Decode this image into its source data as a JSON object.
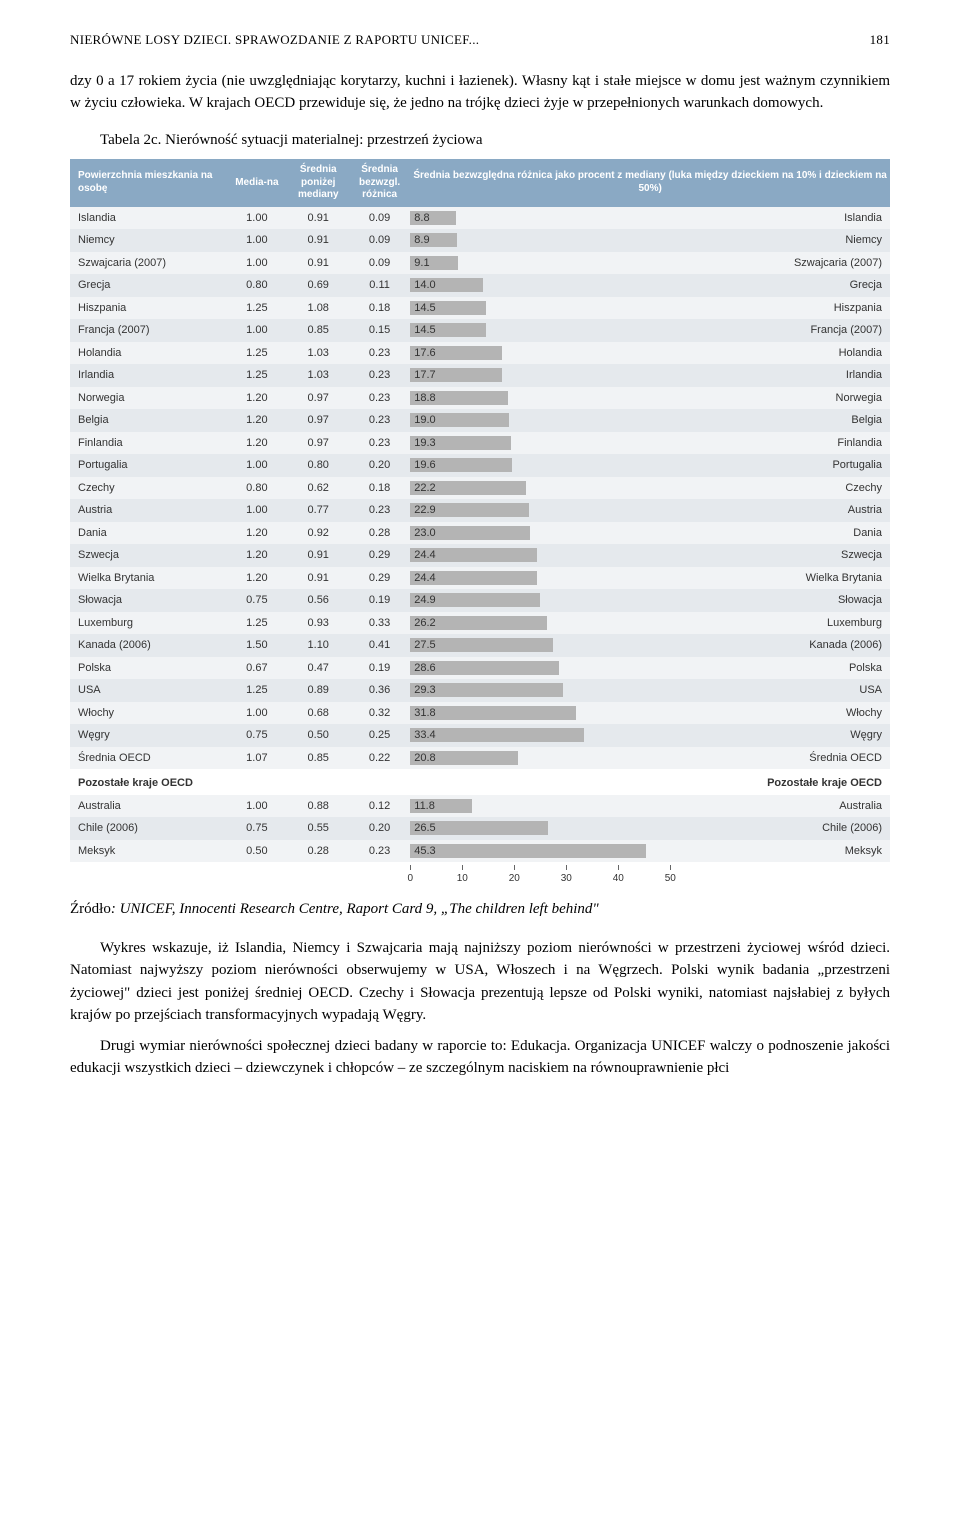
{
  "header": {
    "title": "NIERÓWNE LOSY DZIECI. SPRAWOZDANIE Z RAPORTU UNICEF...",
    "page": "181"
  },
  "intro": "dzy 0 a 17 rokiem życia (nie uwzględniając korytarzy, kuchni i łazienek). Własny kąt i stałe miejsce w domu jest ważnym czynnikiem w życiu człowieka. W krajach OECD przewiduje się, że jedno na trójkę dzieci żyje w przepełnionych warunkach domowych.",
  "table_caption": "Tabela 2c. Nierówność sytuacji materialnej: przestrzeń życiowa",
  "table": {
    "headers": {
      "col1": "Powierzchnia mieszkania na osobę",
      "col2": "Media-na",
      "col3": "Średnia poniżej mediany",
      "col4": "Średnia bezwzgl. różnica",
      "col5": "Średnia bezwzględna różnica jako procent z mediany (luka między dzieckiem na 10% i dzieckiem na 50%)"
    },
    "rows": [
      {
        "name": "Islandia",
        "med": "1.00",
        "below": "0.91",
        "diff": "0.09",
        "val": 8.8
      },
      {
        "name": "Niemcy",
        "med": "1.00",
        "below": "0.91",
        "diff": "0.09",
        "val": 8.9
      },
      {
        "name": "Szwajcaria (2007)",
        "med": "1.00",
        "below": "0.91",
        "diff": "0.09",
        "val": 9.1
      },
      {
        "name": "Grecja",
        "med": "0.80",
        "below": "0.69",
        "diff": "0.11",
        "val": 14.0
      },
      {
        "name": "Hiszpania",
        "med": "1.25",
        "below": "1.08",
        "diff": "0.18",
        "val": 14.5
      },
      {
        "name": "Francja (2007)",
        "med": "1.00",
        "below": "0.85",
        "diff": "0.15",
        "val": 14.5
      },
      {
        "name": "Holandia",
        "med": "1.25",
        "below": "1.03",
        "diff": "0.23",
        "val": 17.6
      },
      {
        "name": "Irlandia",
        "med": "1.25",
        "below": "1.03",
        "diff": "0.23",
        "val": 17.7
      },
      {
        "name": "Norwegia",
        "med": "1.20",
        "below": "0.97",
        "diff": "0.23",
        "val": 18.8
      },
      {
        "name": "Belgia",
        "med": "1.20",
        "below": "0.97",
        "diff": "0.23",
        "val": 19.0
      },
      {
        "name": "Finlandia",
        "med": "1.20",
        "below": "0.97",
        "diff": "0.23",
        "val": 19.3
      },
      {
        "name": "Portugalia",
        "med": "1.00",
        "below": "0.80",
        "diff": "0.20",
        "val": 19.6
      },
      {
        "name": "Czechy",
        "med": "0.80",
        "below": "0.62",
        "diff": "0.18",
        "val": 22.2
      },
      {
        "name": "Austria",
        "med": "1.00",
        "below": "0.77",
        "diff": "0.23",
        "val": 22.9
      },
      {
        "name": "Dania",
        "med": "1.20",
        "below": "0.92",
        "diff": "0.28",
        "val": 23.0
      },
      {
        "name": "Szwecja",
        "med": "1.20",
        "below": "0.91",
        "diff": "0.29",
        "val": 24.4
      },
      {
        "name": "Wielka Brytania",
        "med": "1.20",
        "below": "0.91",
        "diff": "0.29",
        "val": 24.4
      },
      {
        "name": "Słowacja",
        "med": "0.75",
        "below": "0.56",
        "diff": "0.19",
        "val": 24.9
      },
      {
        "name": "Luxemburg",
        "med": "1.25",
        "below": "0.93",
        "diff": "0.33",
        "val": 26.2
      },
      {
        "name": "Kanada (2006)",
        "med": "1.50",
        "below": "1.10",
        "diff": "0.41",
        "val": 27.5
      },
      {
        "name": "Polska",
        "med": "0.67",
        "below": "0.47",
        "diff": "0.19",
        "val": 28.6
      },
      {
        "name": "USA",
        "med": "1.25",
        "below": "0.89",
        "diff": "0.36",
        "val": 29.3
      },
      {
        "name": "Włochy",
        "med": "1.00",
        "below": "0.68",
        "diff": "0.32",
        "val": 31.8
      },
      {
        "name": "Węgry",
        "med": "0.75",
        "below": "0.50",
        "diff": "0.25",
        "val": 33.4
      },
      {
        "name": "Średnia OECD",
        "med": "1.07",
        "below": "0.85",
        "diff": "0.22",
        "val": 20.8
      }
    ],
    "section_label_left": "Pozostałe kraje OECD",
    "section_label_right": "Pozostałe kraje OECD",
    "extra_rows": [
      {
        "name": "Australia",
        "med": "1.00",
        "below": "0.88",
        "diff": "0.12",
        "val": 11.8
      },
      {
        "name": "Chile (2006)",
        "med": "0.75",
        "below": "0.55",
        "diff": "0.20",
        "val": 26.5
      },
      {
        "name": "Meksyk",
        "med": "0.50",
        "below": "0.28",
        "diff": "0.23",
        "val": 45.3
      }
    ],
    "axis": {
      "max": 50,
      "ticks": [
        0,
        10,
        20,
        30,
        40,
        50
      ]
    },
    "bar_color": "#b4b4b4"
  },
  "source_lead": "Źródło",
  "source": ": UNICEF, Innocenti Research Centre, Raport Card 9, „The children left behind\"",
  "body1": "Wykres wskazuje, iż Islandia, Niemcy i Szwajcaria mają najniższy poziom nierówności w przestrzeni życiowej wśród dzieci. Natomiast najwyższy poziom nierówności obserwujemy w USA, Włoszech i na Węgrzech. Polski wynik badania „przestrzeni życiowej\" dzieci jest poniżej średniej OECD. Czechy i Słowacja prezentują lepsze od Polski wyniki, natomiast najsłabiej z byłych krajów po przejściach transformacyjnych wypadają Węgry.",
  "body2": "Drugi wymiar nierówności społecznej dzieci badany w raporcie to: Edukacja. Organizacja UNICEF walczy o podnoszenie jakości edukacji wszystkich dzieci – dziewczynek i chłopców – ze szczególnym naciskiem na równouprawnienie płci"
}
